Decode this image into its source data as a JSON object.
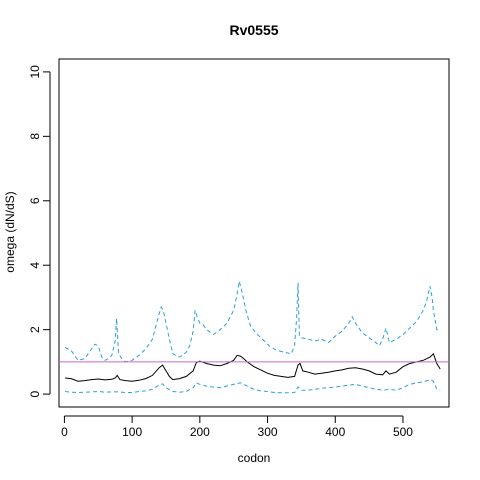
{
  "chart_data": {
    "type": "line",
    "title": "Rv0555",
    "xlabel": "codon",
    "ylabel": "omega (dN/dS)",
    "xlim": [
      -8,
      568
    ],
    "ylim": [
      -0.4,
      10.4
    ],
    "xticks": [
      0,
      100,
      200,
      300,
      400,
      500
    ],
    "yticks": [
      0,
      2,
      4,
      6,
      8,
      10
    ],
    "reference_line": {
      "y": 1,
      "color": "#cc66cc"
    },
    "grid": false,
    "legend": "none",
    "series": [
      {
        "role": "upper-bound",
        "color": "#2aa0e0",
        "style": "dashed",
        "x": [
          1,
          10,
          20,
          30,
          35,
          40,
          45,
          50,
          55,
          60,
          65,
          70,
          75,
          77,
          80,
          85,
          90,
          100,
          110,
          120,
          130,
          135,
          140,
          143,
          146,
          150,
          155,
          160,
          170,
          180,
          185,
          190,
          193,
          196,
          200,
          205,
          210,
          220,
          230,
          240,
          250,
          255,
          258,
          261,
          264,
          268,
          275,
          285,
          295,
          305,
          315,
          325,
          335,
          340,
          343,
          345,
          347,
          350,
          360,
          370,
          380,
          390,
          400,
          410,
          420,
          425,
          430,
          440,
          450,
          460,
          465,
          470,
          475,
          480,
          490,
          500,
          510,
          520,
          530,
          535,
          540,
          543,
          545,
          550,
          555
        ],
        "y": [
          1.45,
          1.35,
          1.05,
          1.1,
          1.25,
          1.4,
          1.55,
          1.5,
          1.15,
          1.05,
          1.1,
          1.2,
          1.65,
          2.35,
          1.25,
          1.1,
          1.0,
          1.05,
          1.2,
          1.4,
          1.7,
          2.1,
          2.5,
          2.7,
          2.6,
          2.2,
          1.7,
          1.25,
          1.15,
          1.3,
          1.5,
          1.95,
          2.6,
          2.4,
          2.2,
          2.15,
          2.0,
          1.85,
          2.0,
          2.2,
          2.6,
          3.1,
          3.5,
          3.3,
          3.0,
          2.6,
          2.1,
          1.85,
          1.65,
          1.45,
          1.35,
          1.3,
          1.25,
          1.5,
          2.4,
          3.45,
          1.8,
          1.75,
          1.7,
          1.65,
          1.7,
          1.6,
          1.8,
          1.95,
          2.2,
          2.4,
          2.2,
          1.9,
          1.75,
          1.6,
          1.5,
          1.7,
          2.05,
          1.6,
          1.7,
          1.85,
          2.05,
          2.25,
          2.6,
          2.9,
          3.35,
          3.0,
          2.6,
          2.0,
          2.0
        ]
      },
      {
        "role": "estimate",
        "color": "#000000",
        "style": "solid",
        "x": [
          1,
          10,
          20,
          30,
          40,
          50,
          60,
          70,
          75,
          78,
          82,
          90,
          100,
          110,
          120,
          130,
          140,
          145,
          150,
          155,
          160,
          170,
          180,
          190,
          195,
          200,
          210,
          220,
          230,
          240,
          250,
          255,
          260,
          265,
          270,
          280,
          290,
          300,
          310,
          320,
          330,
          340,
          345,
          348,
          352,
          360,
          370,
          380,
          390,
          400,
          410,
          420,
          430,
          440,
          450,
          460,
          470,
          475,
          480,
          490,
          500,
          510,
          520,
          530,
          540,
          545,
          550,
          555
        ],
        "y": [
          0.5,
          0.48,
          0.4,
          0.42,
          0.45,
          0.47,
          0.44,
          0.46,
          0.5,
          0.58,
          0.45,
          0.42,
          0.4,
          0.43,
          0.48,
          0.58,
          0.82,
          0.9,
          0.72,
          0.55,
          0.45,
          0.48,
          0.55,
          0.72,
          0.98,
          1.02,
          0.95,
          0.9,
          0.88,
          0.95,
          1.05,
          1.2,
          1.18,
          1.1,
          1.0,
          0.85,
          0.75,
          0.65,
          0.58,
          0.55,
          0.52,
          0.55,
          0.9,
          0.95,
          0.72,
          0.68,
          0.62,
          0.65,
          0.68,
          0.72,
          0.75,
          0.8,
          0.82,
          0.78,
          0.72,
          0.62,
          0.6,
          0.72,
          0.62,
          0.68,
          0.85,
          0.95,
          1.0,
          1.05,
          1.15,
          1.25,
          0.95,
          0.78
        ]
      },
      {
        "role": "lower-bound",
        "color": "#2aa0e0",
        "style": "dashed",
        "x": [
          1,
          10,
          20,
          30,
          40,
          50,
          60,
          70,
          80,
          90,
          100,
          110,
          120,
          130,
          140,
          145,
          150,
          160,
          170,
          180,
          190,
          195,
          200,
          210,
          220,
          230,
          240,
          250,
          260,
          270,
          280,
          290,
          300,
          310,
          320,
          330,
          340,
          345,
          350,
          360,
          370,
          380,
          390,
          400,
          410,
          420,
          430,
          440,
          450,
          460,
          470,
          480,
          490,
          500,
          510,
          520,
          530,
          540,
          545,
          550,
          555
        ],
        "y": [
          0.08,
          0.06,
          0.05,
          0.06,
          0.07,
          0.08,
          0.06,
          0.07,
          0.07,
          0.05,
          0.05,
          0.08,
          0.1,
          0.15,
          0.28,
          0.32,
          0.2,
          0.08,
          0.06,
          0.08,
          0.2,
          0.35,
          0.3,
          0.25,
          0.22,
          0.2,
          0.25,
          0.3,
          0.35,
          0.25,
          0.15,
          0.1,
          0.08,
          0.05,
          0.04,
          0.04,
          0.05,
          0.22,
          0.12,
          0.12,
          0.15,
          0.18,
          0.2,
          0.22,
          0.25,
          0.28,
          0.3,
          0.25,
          0.2,
          0.15,
          0.12,
          0.15,
          0.12,
          0.2,
          0.3,
          0.35,
          0.38,
          0.45,
          0.4,
          0.15,
          0.12
        ]
      }
    ]
  }
}
